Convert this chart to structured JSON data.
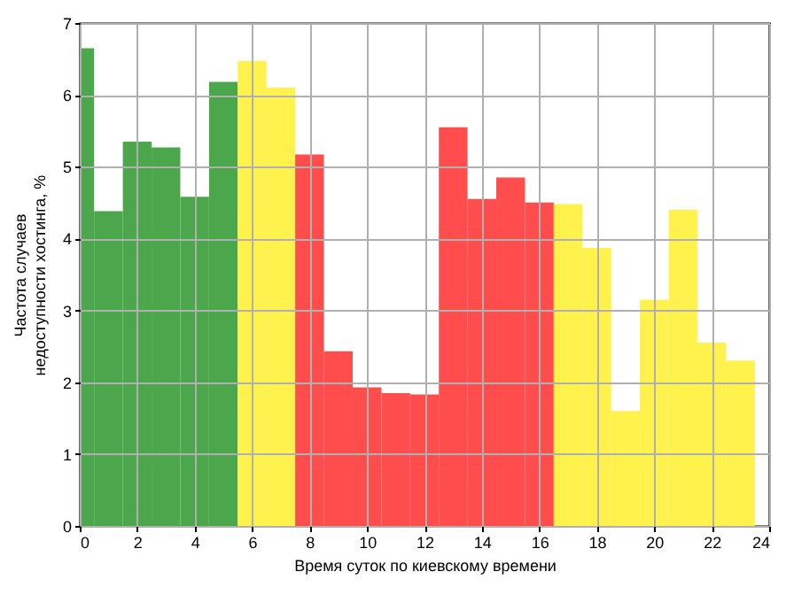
{
  "chart_data": {
    "type": "histogram",
    "xlabel": "Время суток по киевскому времени",
    "ylabel": "Частота случаев\nнедоступности хостинга, %",
    "bins": [
      0,
      0.5,
      1.5,
      2.5,
      3.5,
      4.5,
      5.5,
      6.5,
      7.5,
      8.5,
      9.5,
      10.5,
      11.5,
      12.5,
      13.5,
      14.5,
      15.5,
      16.5,
      17.5,
      18.5,
      19.5,
      20.5,
      21.5,
      22.5,
      23.5
    ],
    "values": [
      6.65,
      4.38,
      5.35,
      5.27,
      4.58,
      6.18,
      6.47,
      6.1,
      5.17,
      2.43,
      1.93,
      1.85,
      1.83,
      5.55,
      4.55,
      4.85,
      4.5,
      4.48,
      3.87,
      1.6,
      3.15,
      4.4,
      2.55,
      2.3
    ],
    "colors": [
      "#4ca64c",
      "#4ca64c",
      "#4ca64c",
      "#4ca64c",
      "#4ca64c",
      "#4ca64c",
      "#fff24d",
      "#fff24d",
      "#ff4d4d",
      "#ff4d4d",
      "#ff4d4d",
      "#ff4d4d",
      "#ff4d4d",
      "#ff4d4d",
      "#ff4d4d",
      "#ff4d4d",
      "#ff4d4d",
      "#fff24d",
      "#fff24d",
      "#fff24d",
      "#fff24d",
      "#fff24d",
      "#fff24d",
      "#fff24d"
    ],
    "xlim": [
      0,
      24
    ],
    "xticks": [
      0,
      2,
      4,
      6,
      8,
      10,
      12,
      14,
      16,
      18,
      20,
      22,
      24
    ],
    "ylim": [
      0,
      7
    ],
    "yticks": [
      0,
      1,
      2,
      3,
      4,
      5,
      6,
      7
    ],
    "grid": true
  }
}
